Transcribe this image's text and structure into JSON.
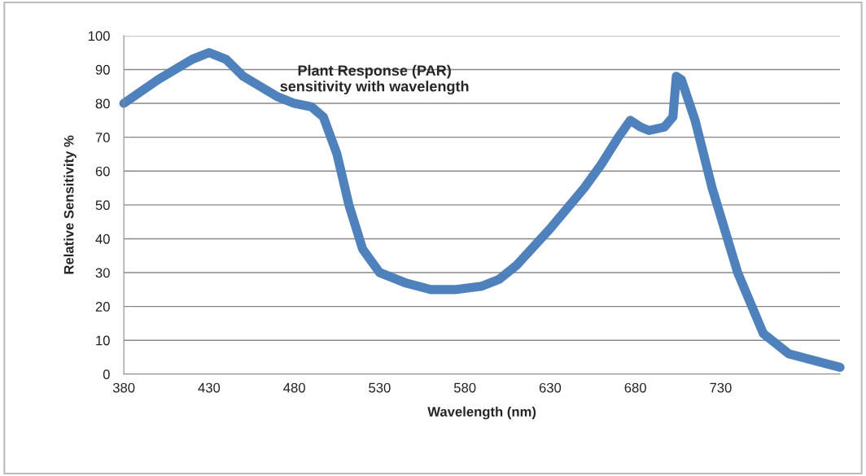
{
  "chart_data": {
    "type": "line",
    "title": "Plant Response (PAR)\nsensitivity with wavelength",
    "xlabel": "Wavelength (nm)",
    "ylabel": "Relative Sensitivity %",
    "series": [
      {
        "color": "#4f81bd",
        "x": [
          380,
          400,
          420,
          430,
          440,
          450,
          470,
          480,
          490,
          497,
          505,
          512,
          520,
          530,
          545,
          560,
          575,
          590,
          600,
          610,
          630,
          650,
          660,
          670,
          677,
          683,
          688,
          697,
          702,
          704,
          707,
          715,
          725,
          740,
          755,
          770,
          800
        ],
        "values": [
          80,
          87,
          93,
          95,
          93,
          88,
          82,
          80,
          79,
          76,
          65,
          50,
          37,
          30,
          27,
          25,
          25,
          26,
          28,
          32,
          43,
          55,
          62,
          70,
          75,
          73,
          72,
          73,
          76,
          88,
          87,
          75,
          55,
          30,
          12,
          6,
          2
        ]
      }
    ],
    "xlim": [
      380,
      800
    ],
    "xticks": [
      380,
      430,
      480,
      530,
      580,
      630,
      680,
      730
    ],
    "ylim": [
      0,
      100
    ],
    "yticks": [
      0,
      10,
      20,
      30,
      40,
      50,
      60,
      70,
      80,
      90,
      100
    ],
    "grid": "y"
  }
}
